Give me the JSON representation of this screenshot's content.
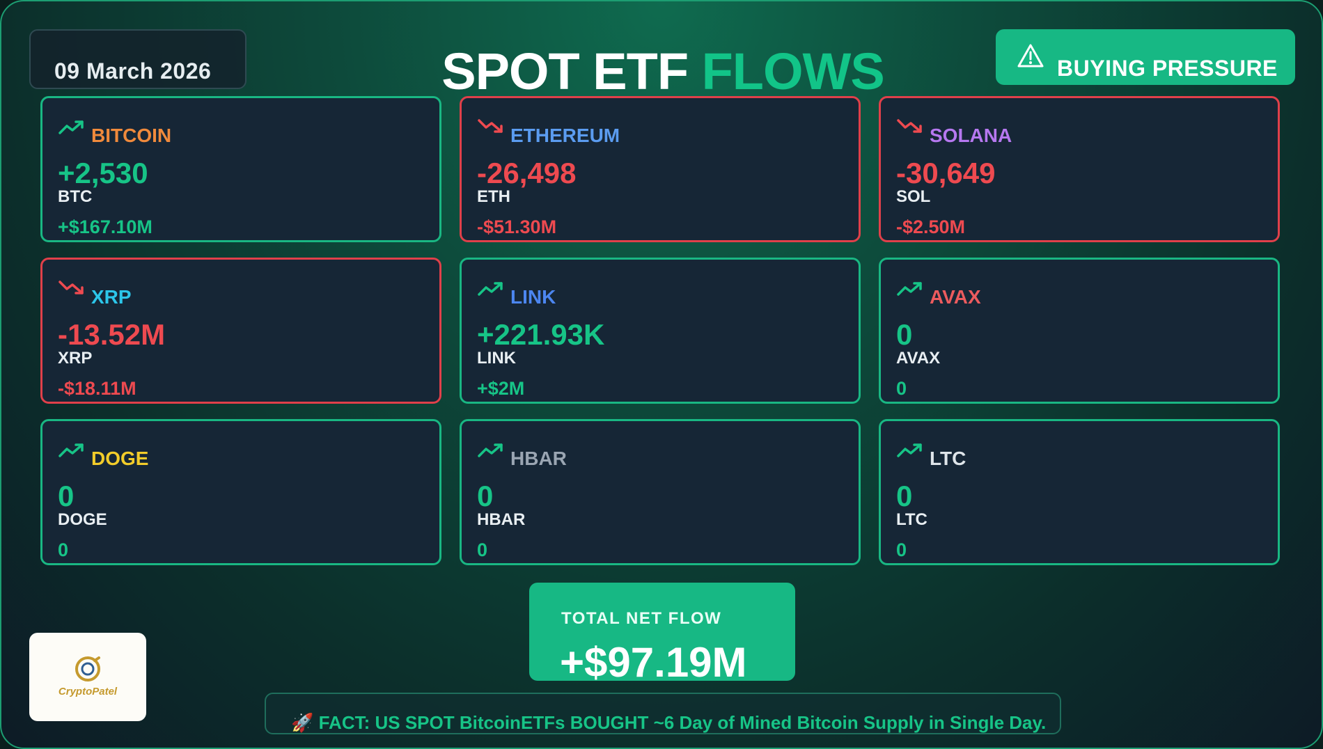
{
  "header": {
    "date": "09 March 2026",
    "title_white": "SPOT ETF",
    "title_green": "FLOWS",
    "pressure_label": "BUYING PRESSURE"
  },
  "colors": {
    "positive": "#17c487",
    "negative": "#ee4a50",
    "accent": "#17b884",
    "card_bg": "#162636"
  },
  "cards": [
    {
      "name": "BITCOIN",
      "name_color": "#f08a3c",
      "trend": "up",
      "amount": "+2,530",
      "symbol": "BTC",
      "usd": "+$167.10M"
    },
    {
      "name": "ETHEREUM",
      "name_color": "#5b9cf0",
      "trend": "down",
      "amount": "-26,498",
      "symbol": "ETH",
      "usd": "-$51.30M"
    },
    {
      "name": "SOLANA",
      "name_color": "#b678f0",
      "trend": "down",
      "amount": "-30,649",
      "symbol": "SOL",
      "usd": "-$2.50M"
    },
    {
      "name": "XRP",
      "name_color": "#2cc6ea",
      "trend": "down",
      "amount": "-13.52M",
      "symbol": "XRP",
      "usd": "-$18.11M"
    },
    {
      "name": "LINK",
      "name_color": "#4c86f0",
      "trend": "up",
      "amount": "+221.93K",
      "symbol": "LINK",
      "usd": "+$2M"
    },
    {
      "name": "AVAX",
      "name_color": "#ec5b5e",
      "trend": "up",
      "amount": "0",
      "symbol": "AVAX",
      "usd": "0"
    },
    {
      "name": "DOGE",
      "name_color": "#f2cc2a",
      "trend": "up",
      "amount": "0",
      "symbol": "DOGE",
      "usd": "0"
    },
    {
      "name": "HBAR",
      "name_color": "#9aa5b2",
      "trend": "up",
      "amount": "0",
      "symbol": "HBAR",
      "usd": "0"
    },
    {
      "name": "LTC",
      "name_color": "#dfe5ea",
      "trend": "up",
      "amount": "0",
      "symbol": "LTC",
      "usd": "0"
    }
  ],
  "total": {
    "label": "TOTAL NET FLOW",
    "value": "+$97.19M"
  },
  "logo": {
    "text": "CryptoPatel"
  },
  "fact": {
    "icon": "rocket-icon",
    "text": "🚀 FACT: US SPOT BitcoinETFs BOUGHT ~6 Day of Mined Bitcoin Supply in Single Day."
  }
}
